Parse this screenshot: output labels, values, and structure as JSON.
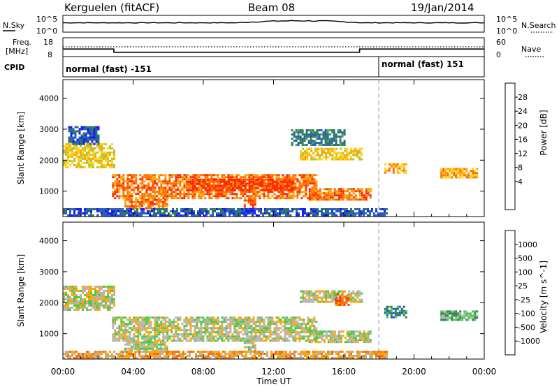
{
  "header": {
    "station": "Kerguelen (fitACF)",
    "beam": "Beam 08",
    "date": "19/Jan/2014"
  },
  "noise_panel": {
    "left_label": "N.Sky",
    "right_label": "N.Search",
    "left_ticks": [
      "10^5",
      "10^0"
    ],
    "right_ticks": [
      "10^5",
      "10^0"
    ]
  },
  "freq_panel": {
    "left_label_line1": "Freq.",
    "left_label_line2": "[MHz]",
    "right_label": "Nave",
    "left_ticks": [
      "18",
      "8"
    ],
    "right_ticks": [
      "60",
      "0"
    ]
  },
  "cpid": {
    "label": "CPID",
    "segments": [
      {
        "text": "normal (fast) -151",
        "start_hour": 0
      },
      {
        "text": "normal (fast) 151",
        "start_hour": 18
      }
    ]
  },
  "chart_data": [
    {
      "type": "heatmap",
      "name": "power",
      "ylabel": "Slant Range [km]",
      "yticks": [
        "4000",
        "3000",
        "2000",
        "1000"
      ],
      "ylim": [
        180,
        4600
      ],
      "colorbar_label": "Power [dB]",
      "colorbar_ticks": [
        "28",
        "24",
        "20",
        "16",
        "12",
        "8",
        "4"
      ],
      "colors": [
        "#1a1aff",
        "#2a5fb8",
        "#2f7f55",
        "#52a858",
        "#a8c83a",
        "#ffd21a",
        "#ffa500",
        "#ff7000",
        "#ff2a00"
      ],
      "regions": [
        {
          "t0": 0.0,
          "t1": 2.9,
          "r0": 1750,
          "r1": 2550,
          "level": 5
        },
        {
          "t0": 0.3,
          "t1": 2.0,
          "r0": 2550,
          "r1": 3100,
          "level": 1
        },
        {
          "t0": 2.8,
          "t1": 14.5,
          "r0": 800,
          "r1": 1550,
          "level": 7
        },
        {
          "t0": 7.0,
          "t1": 13.0,
          "r0": 1000,
          "r1": 1400,
          "level": 8
        },
        {
          "t0": 3.5,
          "t1": 6.0,
          "r0": 450,
          "r1": 750,
          "level": 7
        },
        {
          "t0": 10.3,
          "t1": 11.0,
          "r0": 450,
          "r1": 800,
          "level": 8
        },
        {
          "t0": 13.5,
          "t1": 17.0,
          "r0": 2000,
          "r1": 2400,
          "level": 5
        },
        {
          "t0": 13.0,
          "t1": 16.0,
          "r0": 2500,
          "r1": 3000,
          "level": 2
        },
        {
          "t0": 14.0,
          "t1": 17.5,
          "r0": 700,
          "r1": 1100,
          "level": 7
        },
        {
          "t0": 18.3,
          "t1": 19.5,
          "r0": 1600,
          "r1": 1900,
          "level": 6
        },
        {
          "t0": 21.5,
          "t1": 23.6,
          "r0": 1450,
          "r1": 1750,
          "level": 6
        },
        {
          "t0": 0.0,
          "t1": 18.5,
          "r0": 180,
          "r1": 450,
          "level": 1
        }
      ]
    },
    {
      "type": "heatmap",
      "name": "velocity",
      "ylabel": "Slant Range [km]",
      "yticks": [
        "4000",
        "3000",
        "2000",
        "1000"
      ],
      "ylim": [
        180,
        4600
      ],
      "colorbar_label": "Velocity [m s^-1]",
      "colorbar_ticks": [
        "1000",
        "500",
        "100",
        "25",
        "-25",
        "-100",
        "-500",
        "-1000"
      ],
      "colors": [
        "#0a2aff",
        "#1f55c0",
        "#2f8050",
        "#48c848",
        "#b4b4b4",
        "#ffa500",
        "#ff7000",
        "#ff3a00",
        "#ff0000"
      ],
      "regions": [
        {
          "t0": 0.0,
          "t1": 2.9,
          "r0": 1750,
          "r1": 2550,
          "level": 4
        },
        {
          "t0": 2.8,
          "t1": 14.5,
          "r0": 800,
          "r1": 1550,
          "level": 4
        },
        {
          "t0": 3.5,
          "t1": 6.0,
          "r0": 450,
          "r1": 750,
          "level": 4
        },
        {
          "t0": 10.3,
          "t1": 11.0,
          "r0": 450,
          "r1": 800,
          "level": 4
        },
        {
          "t0": 13.5,
          "t1": 17.0,
          "r0": 2000,
          "r1": 2400,
          "level": 4
        },
        {
          "t0": 14.0,
          "t1": 17.5,
          "r0": 700,
          "r1": 1100,
          "level": 4
        },
        {
          "t0": 18.3,
          "t1": 19.5,
          "r0": 1500,
          "r1": 1900,
          "level": 2
        },
        {
          "t0": 21.5,
          "t1": 23.6,
          "r0": 1450,
          "r1": 1750,
          "level": 3
        },
        {
          "t0": 15.5,
          "t1": 16.3,
          "r0": 1900,
          "r1": 2300,
          "level": 6
        },
        {
          "t0": 0.0,
          "t1": 18.5,
          "r0": 180,
          "r1": 450,
          "level": 5
        }
      ]
    }
  ],
  "x_axis": {
    "label": "Time UT",
    "ticks": [
      "00:00",
      "04:00",
      "08:00",
      "12:00",
      "16:00",
      "20:00",
      "00:00"
    ],
    "range_hours": [
      0,
      24
    ]
  },
  "freq_data": [
    {
      "t0": 0,
      "t1": 2.9,
      "freq": 12.0
    },
    {
      "t0": 2.9,
      "t1": 16.9,
      "freq": 10.3
    },
    {
      "t0": 16.9,
      "t1": 24,
      "freq": 12.0
    }
  ]
}
